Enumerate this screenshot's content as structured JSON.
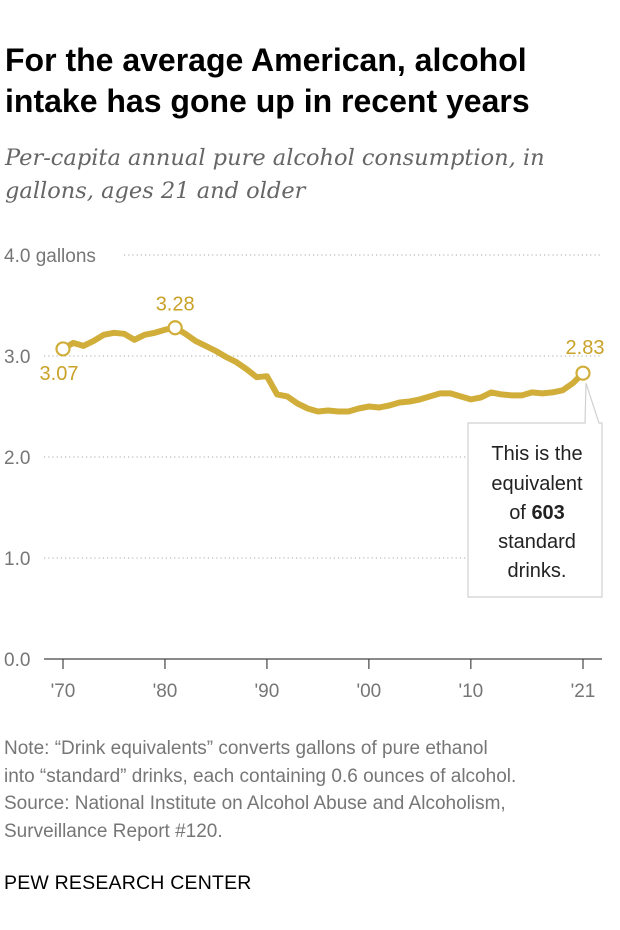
{
  "title": "For the average American, alcohol intake has gone up in recent years",
  "subtitle": "Per-capita annual pure alcohol consumption, in gallons, ages 21 and older",
  "chart_data": {
    "type": "line",
    "title": "For the average American, alcohol intake has gone up in recent years",
    "subtitle": "Per-capita annual pure alcohol consumption, in gallons, ages 21 and older",
    "xlabel": "",
    "ylabel": "gallons",
    "xlim": [
      1970,
      2021
    ],
    "ylim": [
      0,
      4
    ],
    "grid": true,
    "y_ticks": [
      {
        "value": 0,
        "label": "0.0"
      },
      {
        "value": 1,
        "label": "1.0"
      },
      {
        "value": 2,
        "label": "2.0"
      },
      {
        "value": 3,
        "label": "3.0"
      },
      {
        "value": 4,
        "label": "4.0 gallons"
      }
    ],
    "x_ticks": [
      {
        "value": 1970,
        "label": "'70"
      },
      {
        "value": 1980,
        "label": "'80"
      },
      {
        "value": 1990,
        "label": "'90"
      },
      {
        "value": 2000,
        "label": "'00"
      },
      {
        "value": 2010,
        "label": "'10"
      },
      {
        "value": 2021,
        "label": "'21"
      }
    ],
    "series": [
      {
        "name": "Per-capita annual pure alcohol consumption",
        "color": "#D1AE39",
        "x": [
          1970,
          1971,
          1972,
          1973,
          1974,
          1975,
          1976,
          1977,
          1978,
          1979,
          1980,
          1981,
          1982,
          1983,
          1984,
          1985,
          1986,
          1987,
          1988,
          1989,
          1990,
          1991,
          1992,
          1993,
          1994,
          1995,
          1996,
          1997,
          1998,
          1999,
          2000,
          2001,
          2002,
          2003,
          2004,
          2005,
          2006,
          2007,
          2008,
          2009,
          2010,
          2011,
          2012,
          2013,
          2014,
          2015,
          2016,
          2017,
          2018,
          2019,
          2020,
          2021
        ],
        "values": [
          3.07,
          3.13,
          3.1,
          3.15,
          3.21,
          3.23,
          3.22,
          3.16,
          3.21,
          3.23,
          3.26,
          3.28,
          3.22,
          3.15,
          3.1,
          3.05,
          2.99,
          2.94,
          2.87,
          2.79,
          2.8,
          2.62,
          2.6,
          2.53,
          2.48,
          2.45,
          2.46,
          2.45,
          2.45,
          2.48,
          2.5,
          2.49,
          2.51,
          2.54,
          2.55,
          2.57,
          2.6,
          2.63,
          2.63,
          2.6,
          2.57,
          2.59,
          2.64,
          2.62,
          2.61,
          2.61,
          2.64,
          2.63,
          2.64,
          2.66,
          2.73,
          2.83
        ]
      }
    ],
    "annotations": [
      {
        "x": 1970,
        "value": 3.07,
        "label": "3.07"
      },
      {
        "x": 1981,
        "value": 3.28,
        "label": "3.28"
      },
      {
        "x": 2021,
        "value": 2.83,
        "label": "2.83"
      }
    ],
    "callout": {
      "attached_to_x": 2021,
      "line1": "This is the",
      "line2": "equivalent",
      "line3_prefix": "of ",
      "line3_bold": "603",
      "line4": "standard",
      "line5": "drinks."
    }
  },
  "footnote": {
    "line1": "Note: “Drink equivalents” converts gallons of pure ethanol",
    "line2": "into “standard” drinks, each containing 0.6 ounces of alcohol.",
    "line3": "Source: National Institute on Alcohol Abuse and Alcoholism,",
    "line4": "Surveillance Report #120."
  },
  "brand": "PEW RESEARCH CENTER",
  "colors": {
    "line": "#D1AE39",
    "label": "#C9A227",
    "axis_text": "#767676",
    "grid": "#bbbbbb"
  }
}
